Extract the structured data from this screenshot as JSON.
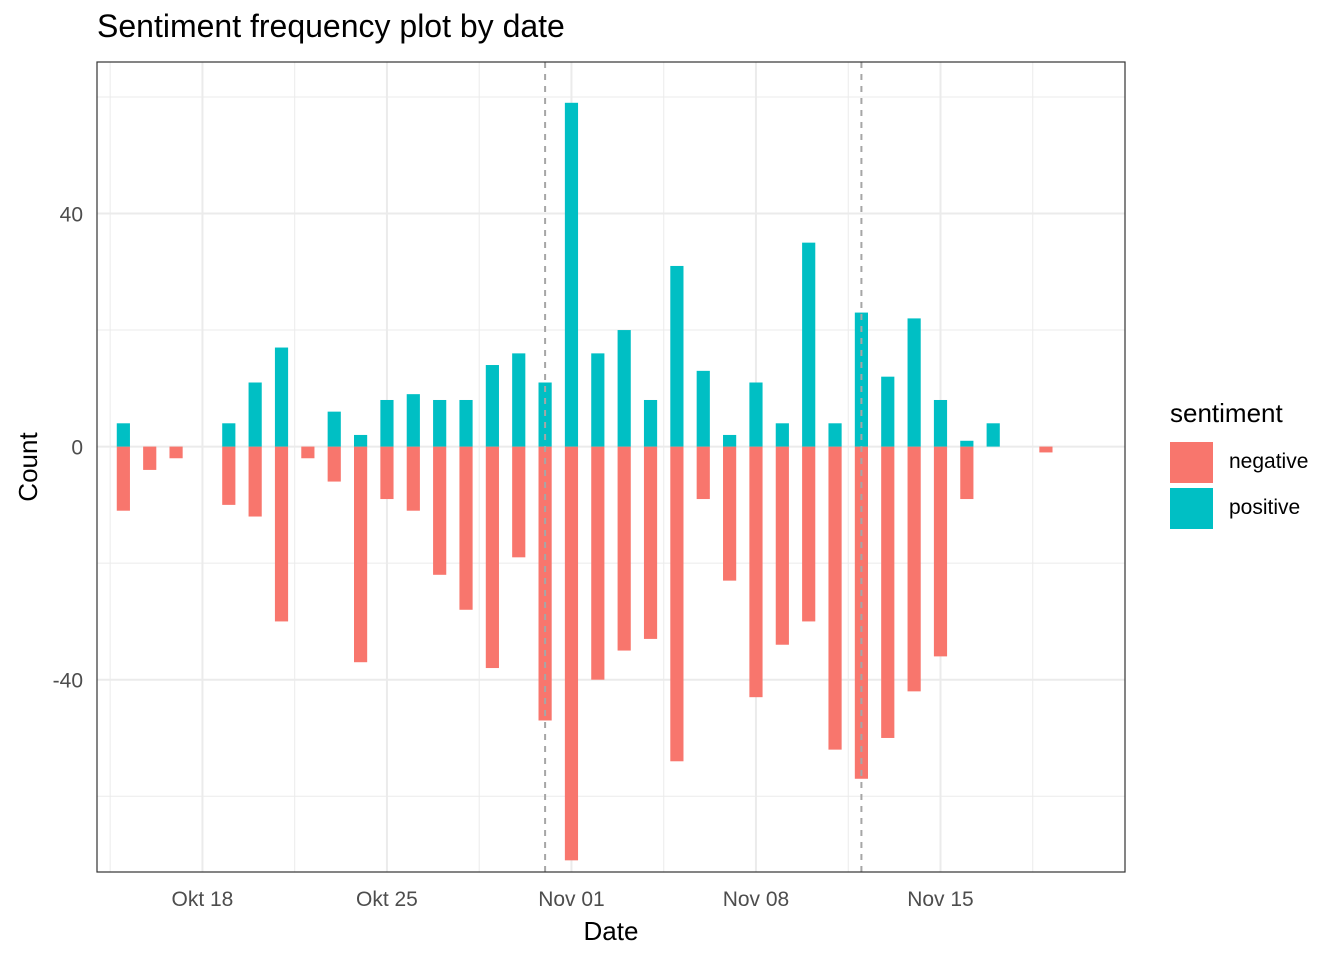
{
  "chart_data": {
    "type": "bar",
    "title": "Sentiment frequency plot by date",
    "xlabel": "Date",
    "ylabel": "Count",
    "x_tick_labels": [
      {
        "date": "2020-10-18",
        "label": "Okt 18"
      },
      {
        "date": "2020-10-25",
        "label": "Okt 25"
      },
      {
        "date": "2020-11-01",
        "label": "Nov 01"
      },
      {
        "date": "2020-11-08",
        "label": "Nov 08"
      },
      {
        "date": "2020-11-15",
        "label": "Nov 15"
      }
    ],
    "y_ticks": [
      -40,
      0,
      40
    ],
    "ylim": [
      -73,
      66
    ],
    "xlim": [
      "2020-10-14",
      "2020-11-22"
    ],
    "grid": true,
    "legend": {
      "title": "sentiment",
      "position": "right"
    },
    "vlines": [
      "2020-10-31",
      "2020-11-12"
    ],
    "series": [
      {
        "name": "negative",
        "color": "#F8766D",
        "points": [
          {
            "date": "2020-10-15",
            "value": -11
          },
          {
            "date": "2020-10-16",
            "value": -4
          },
          {
            "date": "2020-10-17",
            "value": -2
          },
          {
            "date": "2020-10-19",
            "value": -10
          },
          {
            "date": "2020-10-20",
            "value": -12
          },
          {
            "date": "2020-10-21",
            "value": -30
          },
          {
            "date": "2020-10-22",
            "value": -2
          },
          {
            "date": "2020-10-23",
            "value": -6
          },
          {
            "date": "2020-10-24",
            "value": -37
          },
          {
            "date": "2020-10-25",
            "value": -9
          },
          {
            "date": "2020-10-26",
            "value": -11
          },
          {
            "date": "2020-10-27",
            "value": -22
          },
          {
            "date": "2020-10-28",
            "value": -28
          },
          {
            "date": "2020-10-29",
            "value": -38
          },
          {
            "date": "2020-10-30",
            "value": -19
          },
          {
            "date": "2020-10-31",
            "value": -47
          },
          {
            "date": "2020-11-01",
            "value": -71
          },
          {
            "date": "2020-11-02",
            "value": -40
          },
          {
            "date": "2020-11-03",
            "value": -35
          },
          {
            "date": "2020-11-04",
            "value": -33
          },
          {
            "date": "2020-11-05",
            "value": -54
          },
          {
            "date": "2020-11-06",
            "value": -9
          },
          {
            "date": "2020-11-07",
            "value": -23
          },
          {
            "date": "2020-11-08",
            "value": -43
          },
          {
            "date": "2020-11-09",
            "value": -34
          },
          {
            "date": "2020-11-10",
            "value": -30
          },
          {
            "date": "2020-11-11",
            "value": -52
          },
          {
            "date": "2020-11-12",
            "value": -57
          },
          {
            "date": "2020-11-13",
            "value": -50
          },
          {
            "date": "2020-11-14",
            "value": -42
          },
          {
            "date": "2020-11-15",
            "value": -36
          },
          {
            "date": "2020-11-16",
            "value": -9
          },
          {
            "date": "2020-11-19",
            "value": -1
          }
        ]
      },
      {
        "name": "positive",
        "color": "#00BFC4",
        "points": [
          {
            "date": "2020-10-15",
            "value": 4
          },
          {
            "date": "2020-10-19",
            "value": 4
          },
          {
            "date": "2020-10-20",
            "value": 11
          },
          {
            "date": "2020-10-21",
            "value": 17
          },
          {
            "date": "2020-10-23",
            "value": 6
          },
          {
            "date": "2020-10-24",
            "value": 2
          },
          {
            "date": "2020-10-25",
            "value": 8
          },
          {
            "date": "2020-10-26",
            "value": 9
          },
          {
            "date": "2020-10-27",
            "value": 8
          },
          {
            "date": "2020-10-28",
            "value": 8
          },
          {
            "date": "2020-10-29",
            "value": 14
          },
          {
            "date": "2020-10-30",
            "value": 16
          },
          {
            "date": "2020-10-31",
            "value": 11
          },
          {
            "date": "2020-11-01",
            "value": 59
          },
          {
            "date": "2020-11-02",
            "value": 16
          },
          {
            "date": "2020-11-03",
            "value": 20
          },
          {
            "date": "2020-11-04",
            "value": 8
          },
          {
            "date": "2020-11-05",
            "value": 31
          },
          {
            "date": "2020-11-06",
            "value": 13
          },
          {
            "date": "2020-11-07",
            "value": 2
          },
          {
            "date": "2020-11-08",
            "value": 11
          },
          {
            "date": "2020-11-09",
            "value": 4
          },
          {
            "date": "2020-11-10",
            "value": 35
          },
          {
            "date": "2020-11-11",
            "value": 4
          },
          {
            "date": "2020-11-12",
            "value": 23
          },
          {
            "date": "2020-11-13",
            "value": 12
          },
          {
            "date": "2020-11-14",
            "value": 22
          },
          {
            "date": "2020-11-15",
            "value": 8
          },
          {
            "date": "2020-11-16",
            "value": 1
          },
          {
            "date": "2020-11-17",
            "value": 4
          }
        ]
      }
    ]
  }
}
